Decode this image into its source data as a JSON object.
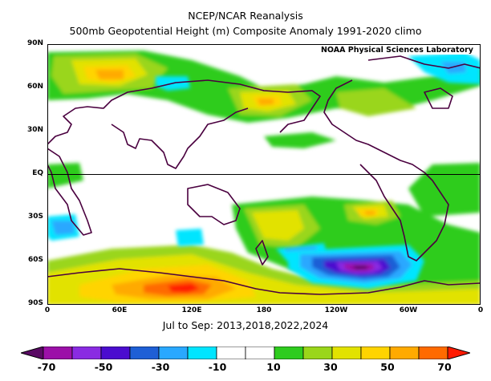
{
  "header": {
    "title": "NCEP/NCAR Reanalysis",
    "subtitle": "500mb Geopotential Height (m) Composite Anomaly 1991-2020 climo"
  },
  "credit": "NOAA Physical Sciences Laboratory",
  "latitude_labels": [
    "90N",
    "60N",
    "30N",
    "EQ",
    "30S",
    "60S",
    "90S"
  ],
  "longitude_labels": [
    "0",
    "60E",
    "120E",
    "180",
    "120W",
    "60W",
    "0"
  ],
  "season": "Jul to Sep: 2013,2018,2022,2024",
  "colorbar": {
    "labels": [
      "-70",
      "-50",
      "-30",
      "-10",
      "10",
      "30",
      "50",
      "70"
    ],
    "colors": [
      "#5a0a64",
      "#9c10a8",
      "#8a2be2",
      "#4b0ccf",
      "#1e5fd6",
      "#29a8ff",
      "#00e5ff",
      "#ffffff",
      "#ffffff",
      "#2ecc1e",
      "#9ad61a",
      "#e2e200",
      "#ffd400",
      "#ffaa00",
      "#ff6a00",
      "#ff1a00"
    ]
  }
}
